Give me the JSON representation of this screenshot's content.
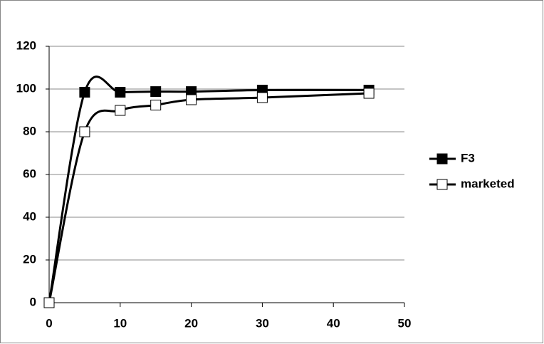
{
  "chart_data": {
    "type": "line",
    "smooth": true,
    "x": [
      0,
      5,
      10,
      15,
      20,
      30,
      45
    ],
    "series": [
      {
        "name": "F3",
        "color": "#000000",
        "marker_fill": "#000000",
        "values": [
          0,
          98.5,
          98.5,
          98.8,
          98.8,
          99.5,
          99.5
        ]
      },
      {
        "name": "marketed",
        "color": "#000000",
        "marker_fill": "#ffffff",
        "values": [
          0,
          80,
          90,
          92.5,
          95,
          96,
          98
        ]
      }
    ],
    "xlim": [
      0,
      50
    ],
    "xticks": [
      0,
      10,
      20,
      30,
      40,
      50
    ],
    "ylim": [
      0,
      120
    ],
    "yticks": [
      0,
      20,
      40,
      60,
      80,
      100,
      120
    ],
    "grid": true,
    "legend": "right"
  }
}
